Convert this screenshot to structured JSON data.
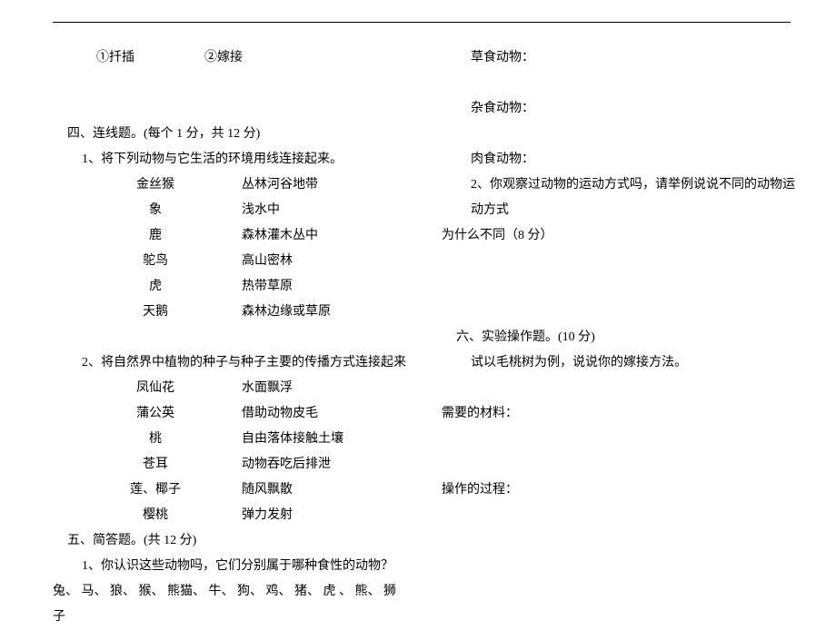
{
  "opts": {
    "a": "①扦插",
    "b": "②嫁接"
  },
  "sec4": {
    "title": "四、连线题。(每个 1 分，共 12 分)",
    "q1": {
      "stem": "1、将下列动物与它生活的环境用线连接起来。",
      "pairs": [
        [
          "金丝猴",
          "丛林河谷地带"
        ],
        [
          "象",
          "浅水中"
        ],
        [
          "鹿",
          "森林灌木丛中"
        ],
        [
          "鸵鸟",
          "高山密林"
        ],
        [
          "虎",
          "热带草原"
        ],
        [
          "天鹅",
          "森林边缘或草原"
        ]
      ]
    },
    "q2": {
      "stem": "2、将自然界中植物的种子与种子主要的传播方式连接起来",
      "pairs": [
        [
          "凤仙花",
          "水面飘浮"
        ],
        [
          "蒲公英",
          "借助动物皮毛"
        ],
        [
          "桃",
          "自由落体接触土壤"
        ],
        [
          "苍耳",
          "动物吞吃后排泄"
        ],
        [
          "莲、椰子",
          "随风飘散"
        ],
        [
          "樱桃",
          "弹力发射"
        ]
      ]
    }
  },
  "sec5": {
    "title": "五、简答题。(共 12 分)",
    "q1": {
      "stem": "1、你认识这些动物吗，它们分别属于哪种食性的动物？",
      "animals_line1": "兔、  马、  狼、  猴、  熊猫、  牛、  狗、  鸡、  猪、  虎  、  熊、   狮",
      "animals_line2": "子"
    },
    "cat1": "草食动物：",
    "cat2": "杂食动物：",
    "cat3": "肉食动物：",
    "q2": {
      "line1": "2、你观察过动物的运动方式吗，请举例说说不同的动物运动方式",
      "line2": "为什么不同（8 分）"
    }
  },
  "sec6": {
    "title": "六、实验操作题。(10 分)",
    "intro": "试以毛桃树为例，说说你的嫁接方法。",
    "mat": "需要的材料：",
    "proc": "操作的过程："
  }
}
